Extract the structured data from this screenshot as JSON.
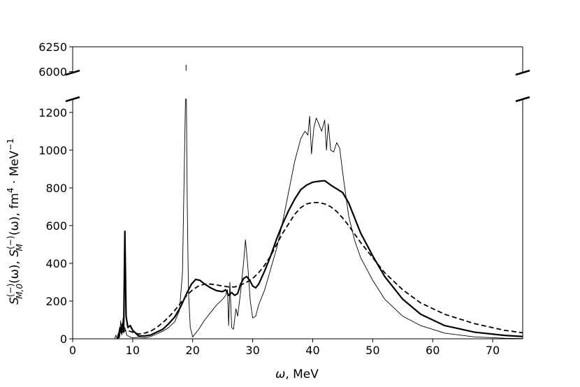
{
  "chart_data": {
    "type": "line",
    "xlabel": "ω, MeV",
    "ylabel": "S_{M,0}^{(−)}(ω), S_M^{(−)}(ω), fm⁴ · MeV⁻¹",
    "ylabel_parts": {
      "s1": "S",
      "s1_sub": "M,0",
      "s1_sup": "(−)",
      "s1_arg": "(ω), ",
      "s2": "S",
      "s2_sub": "M",
      "s2_sup": "(−)",
      "s2_arg": "(ω), fm",
      "fm_sup": "4",
      "mid": " · MeV",
      "mev_sup": "−1"
    },
    "xlim": [
      0,
      75
    ],
    "ylim_lower": [
      0,
      1270
    ],
    "ylim_upper": [
      5990,
      6250
    ],
    "broken_y_axis": true,
    "grid": false,
    "x_ticks": [
      "0",
      "10",
      "20",
      "30",
      "40",
      "50",
      "60",
      "70"
    ],
    "x_tick_values": [
      0,
      10,
      20,
      30,
      40,
      50,
      60,
      70
    ],
    "y_ticks_lower": [
      "0",
      "200",
      "400",
      "600",
      "800",
      "1000",
      "1200"
    ],
    "y_tick_values_lower": [
      0,
      200,
      400,
      600,
      800,
      1000,
      1200
    ],
    "y_ticks_upper": [
      "6000",
      "6250"
    ],
    "y_tick_values_upper": [
      6000,
      6250
    ],
    "upper_peak": {
      "x": 18.9,
      "y_from": 6010,
      "y_to": 6070
    },
    "series": [
      {
        "style": "thin",
        "points": [
          [
            7.0,
            0
          ],
          [
            7.2,
            20
          ],
          [
            7.4,
            0
          ],
          [
            7.6,
            30
          ],
          [
            7.8,
            5
          ],
          [
            8.0,
            95
          ],
          [
            8.2,
            20
          ],
          [
            8.4,
            110
          ],
          [
            8.5,
            30
          ],
          [
            8.7,
            60
          ],
          [
            9.0,
            20
          ],
          [
            9.5,
            10
          ],
          [
            10,
            5
          ],
          [
            11,
            8
          ],
          [
            12,
            5
          ],
          [
            13,
            12
          ],
          [
            14,
            25
          ],
          [
            15,
            40
          ],
          [
            16,
            60
          ],
          [
            17,
            90
          ],
          [
            17.8,
            150
          ],
          [
            18.3,
            350
          ],
          [
            18.6,
            900
          ],
          [
            18.8,
            1270
          ],
          [
            18.95,
            1270
          ],
          [
            19.1,
            700
          ],
          [
            19.3,
            250
          ],
          [
            19.6,
            60
          ],
          [
            20,
            10
          ],
          [
            21,
            50
          ],
          [
            22,
            100
          ],
          [
            23,
            140
          ],
          [
            24,
            180
          ],
          [
            25,
            210
          ],
          [
            25.5,
            230
          ],
          [
            25.8,
            260
          ],
          [
            26.0,
            70
          ],
          [
            26.2,
            300
          ],
          [
            26.5,
            60
          ],
          [
            26.8,
            50
          ],
          [
            27.2,
            160
          ],
          [
            27.5,
            120
          ],
          [
            28,
            250
          ],
          [
            28.5,
            410
          ],
          [
            28.8,
            525
          ],
          [
            29.2,
            380
          ],
          [
            29.6,
            200
          ],
          [
            30,
            110
          ],
          [
            30.5,
            120
          ],
          [
            31,
            180
          ],
          [
            32,
            260
          ],
          [
            33,
            370
          ],
          [
            34,
            480
          ],
          [
            35,
            620
          ],
          [
            36,
            780
          ],
          [
            37,
            940
          ],
          [
            38,
            1060
          ],
          [
            38.7,
            1100
          ],
          [
            39.2,
            1080
          ],
          [
            39.5,
            1180
          ],
          [
            39.8,
            980
          ],
          [
            40.2,
            1120
          ],
          [
            40.6,
            1170
          ],
          [
            41,
            1140
          ],
          [
            41.5,
            1100
          ],
          [
            42,
            1160
          ],
          [
            42.3,
            1000
          ],
          [
            42.6,
            1140
          ],
          [
            43,
            1000
          ],
          [
            43.5,
            990
          ],
          [
            44,
            1040
          ],
          [
            44.5,
            1010
          ],
          [
            45,
            880
          ],
          [
            46,
            650
          ],
          [
            47,
            520
          ],
          [
            48,
            430
          ],
          [
            50,
            310
          ],
          [
            52,
            210
          ],
          [
            55,
            120
          ],
          [
            58,
            70
          ],
          [
            62,
            30
          ],
          [
            67,
            10
          ],
          [
            72,
            3
          ],
          [
            75,
            1
          ]
        ]
      },
      {
        "style": "thick",
        "points": [
          [
            7.5,
            0
          ],
          [
            7.7,
            25
          ],
          [
            7.9,
            60
          ],
          [
            8.1,
            30
          ],
          [
            8.3,
            80
          ],
          [
            8.5,
            40
          ],
          [
            8.7,
            570
          ],
          [
            8.9,
            120
          ],
          [
            9.2,
            60
          ],
          [
            9.6,
            70
          ],
          [
            10,
            45
          ],
          [
            10.5,
            30
          ],
          [
            11,
            15
          ],
          [
            12,
            15
          ],
          [
            13,
            20
          ],
          [
            14,
            35
          ],
          [
            15,
            50
          ],
          [
            16,
            80
          ],
          [
            17,
            115
          ],
          [
            18,
            170
          ],
          [
            19,
            240
          ],
          [
            19.8,
            290
          ],
          [
            20.5,
            315
          ],
          [
            21.2,
            310
          ],
          [
            22,
            290
          ],
          [
            23,
            270
          ],
          [
            24,
            255
          ],
          [
            25,
            250
          ],
          [
            25.5,
            260
          ],
          [
            26,
            230
          ],
          [
            26.5,
            245
          ],
          [
            27,
            230
          ],
          [
            27.5,
            240
          ],
          [
            28,
            290
          ],
          [
            28.5,
            320
          ],
          [
            29,
            330
          ],
          [
            29.5,
            310
          ],
          [
            30,
            280
          ],
          [
            30.5,
            270
          ],
          [
            31,
            290
          ],
          [
            32,
            360
          ],
          [
            33,
            440
          ],
          [
            34,
            530
          ],
          [
            35,
            610
          ],
          [
            36,
            680
          ],
          [
            37,
            740
          ],
          [
            38,
            790
          ],
          [
            39,
            815
          ],
          [
            40,
            830
          ],
          [
            41,
            835
          ],
          [
            42,
            838
          ],
          [
            43,
            815
          ],
          [
            44,
            795
          ],
          [
            45,
            775
          ],
          [
            46,
            720
          ],
          [
            47,
            640
          ],
          [
            48,
            560
          ],
          [
            50,
            440
          ],
          [
            52,
            330
          ],
          [
            55,
            210
          ],
          [
            58,
            130
          ],
          [
            62,
            70
          ],
          [
            67,
            35
          ],
          [
            72,
            18
          ],
          [
            75,
            12
          ]
        ]
      },
      {
        "style": "dashed",
        "points": [
          [
            7.5,
            0
          ],
          [
            8,
            30
          ],
          [
            8.5,
            40
          ],
          [
            9,
            45
          ],
          [
            10,
            35
          ],
          [
            11,
            25
          ],
          [
            12,
            30
          ],
          [
            13,
            40
          ],
          [
            14,
            60
          ],
          [
            15,
            85
          ],
          [
            16,
            115
          ],
          [
            17,
            150
          ],
          [
            18,
            190
          ],
          [
            19,
            230
          ],
          [
            20,
            260
          ],
          [
            21,
            280
          ],
          [
            22,
            290
          ],
          [
            23,
            290
          ],
          [
            24,
            285
          ],
          [
            25,
            280
          ],
          [
            26,
            275
          ],
          [
            27,
            275
          ],
          [
            28,
            285
          ],
          [
            29,
            300
          ],
          [
            30,
            320
          ],
          [
            31,
            350
          ],
          [
            32,
            390
          ],
          [
            33,
            440
          ],
          [
            34,
            500
          ],
          [
            35,
            560
          ],
          [
            36,
            610
          ],
          [
            37,
            660
          ],
          [
            38,
            695
          ],
          [
            39,
            715
          ],
          [
            40,
            722
          ],
          [
            41,
            722
          ],
          [
            42,
            715
          ],
          [
            43,
            700
          ],
          [
            44,
            675
          ],
          [
            45,
            640
          ],
          [
            46,
            600
          ],
          [
            47,
            555
          ],
          [
            48,
            510
          ],
          [
            50,
            430
          ],
          [
            52,
            350
          ],
          [
            55,
            260
          ],
          [
            58,
            190
          ],
          [
            62,
            130
          ],
          [
            67,
            80
          ],
          [
            72,
            45
          ],
          [
            75,
            32
          ]
        ]
      }
    ]
  }
}
